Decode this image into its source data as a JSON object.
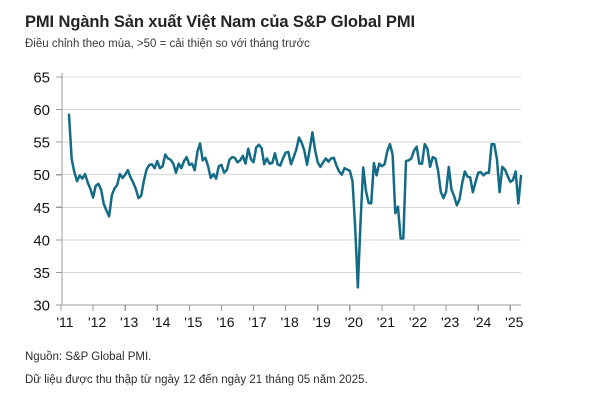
{
  "header": {
    "title": "PMI Ngành Sản xuất Việt Nam của S&P Global PMI",
    "subtitle": "Điều chỉnh theo mùa, >50 = cải thiện so với tháng trước"
  },
  "footer": {
    "source": "Nguồn: S&P Global PMI.",
    "note": "Dữ liệu được thu thập từ ngày 12 đến ngày 21 tháng 05 năm 2025."
  },
  "chart_data": {
    "type": "line",
    "title": "PMI Ngành Sản xuất Việt Nam của S&P Global PMI",
    "subtitle": "Điều chỉnh theo mùa, >50 = cải thiện so với tháng trước",
    "source": "Nguồn: S&P Global PMI.",
    "ylabel": "",
    "xlabel": "",
    "ylim": [
      30,
      65
    ],
    "y_ticks": [
      65,
      60,
      55,
      50,
      45,
      40,
      35,
      30
    ],
    "x_tick_labels": [
      "'11",
      "'12",
      "'13",
      "'14",
      "'15",
      "'16",
      "'17",
      "'18",
      "'19",
      "'20",
      "'21",
      "'22",
      "'23",
      "'24",
      "'25"
    ],
    "grid": "horizontal",
    "legend": "none",
    "line_color": "#136b85",
    "grid_color": "#d9d9d9",
    "axis_color": "#9b9b9b",
    "series": [
      {
        "name": "PMI Ngành Sản xuất Việt Nam",
        "frequency": "monthly",
        "start": "2011-04",
        "end": "2025-05",
        "values": [
          59.2,
          52.4,
          50.4,
          49.0,
          49.9,
          49.4,
          50.1,
          48.8,
          47.8,
          46.5,
          48.3,
          48.6,
          47.7,
          45.5,
          44.5,
          43.6,
          46.8,
          47.9,
          48.4,
          50.1,
          49.5,
          50.0,
          50.7,
          49.6,
          48.8,
          47.8,
          46.4,
          46.8,
          49.1,
          50.8,
          51.5,
          51.6,
          51.0,
          52.1,
          51.0,
          51.3,
          53.1,
          52.5,
          52.3,
          51.7,
          50.3,
          51.7,
          51.0,
          52.1,
          52.7,
          51.5,
          51.7,
          50.7,
          53.5,
          54.8,
          52.2,
          52.6,
          51.3,
          49.5,
          50.1,
          49.4,
          51.3,
          51.5,
          50.3,
          50.7,
          52.3,
          52.7,
          52.6,
          51.9,
          52.2,
          52.9,
          51.7,
          54.0,
          52.4,
          51.9,
          54.2,
          54.6,
          54.1,
          51.6,
          52.5,
          51.7,
          51.8,
          53.3,
          51.6,
          51.4,
          52.5,
          53.4,
          53.5,
          51.6,
          52.7,
          53.9,
          55.7,
          54.9,
          53.7,
          51.5,
          53.9,
          56.5,
          53.8,
          51.9,
          51.2,
          51.9,
          52.5,
          52.0,
          52.5,
          52.6,
          51.4,
          50.5,
          50.0,
          51.0,
          50.8,
          50.6,
          49.0,
          41.9,
          32.7,
          42.7,
          51.1,
          47.6,
          45.7,
          45.6,
          51.8,
          49.9,
          51.7,
          51.3,
          51.6,
          53.6,
          54.7,
          53.1,
          44.1,
          45.1,
          40.2,
          40.2,
          52.1,
          52.2,
          52.5,
          53.7,
          54.3,
          51.7,
          51.7,
          54.7,
          54.0,
          51.2,
          52.7,
          52.5,
          50.6,
          47.4,
          46.4,
          47.4,
          51.2,
          47.7,
          46.7,
          45.3,
          46.2,
          48.7,
          50.5,
          49.7,
          49.6,
          47.3,
          48.9,
          50.3,
          50.4,
          49.9,
          50.3,
          50.3,
          54.7,
          54.7,
          52.4,
          47.3,
          51.2,
          50.8,
          49.8,
          48.9,
          49.2,
          50.5,
          45.6,
          49.8
        ]
      }
    ]
  }
}
